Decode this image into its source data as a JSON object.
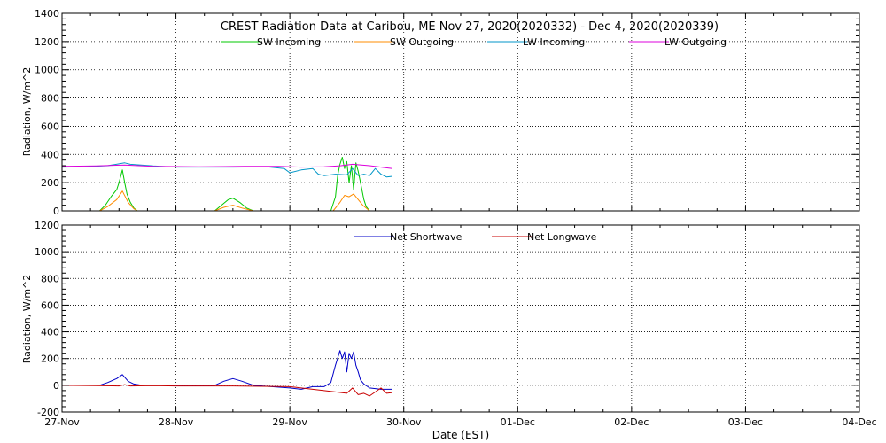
{
  "chart_data": [
    {
      "type": "line",
      "title": "CREST Radiation Data at Caribou, ME   Nov 27, 2020(2020332) - Dec  4, 2020(2020339)",
      "xlabel": "",
      "ylabel": "Radiation, W/m^2",
      "xlim": [
        0,
        7
      ],
      "ylim": [
        0,
        1400
      ],
      "yticks": [
        0,
        200,
        400,
        600,
        800,
        1000,
        1200,
        1400
      ],
      "grid": true,
      "legend_position": "top-center",
      "series": [
        {
          "name": "SW Incoming",
          "color": "#00c800",
          "x": [
            0.33,
            0.38,
            0.43,
            0.48,
            0.5,
            0.53,
            0.55,
            0.57,
            0.6,
            0.63,
            0.66,
            1.34,
            1.4,
            1.46,
            1.5,
            1.56,
            1.62,
            1.68,
            2.36,
            2.4,
            2.42,
            2.44,
            2.46,
            2.48,
            2.5,
            2.52,
            2.54,
            2.56,
            2.58,
            2.6,
            2.62,
            2.65,
            2.67,
            2.7
          ],
          "y": [
            0,
            40,
            100,
            150,
            200,
            290,
            200,
            120,
            60,
            20,
            0,
            0,
            40,
            80,
            90,
            60,
            20,
            0,
            0,
            100,
            250,
            330,
            380,
            300,
            350,
            200,
            320,
            150,
            340,
            280,
            200,
            80,
            30,
            0
          ]
        },
        {
          "name": "SW Outgoing",
          "color": "#ff8c00",
          "x": [
            0.33,
            0.4,
            0.48,
            0.53,
            0.58,
            0.63,
            0.66,
            1.34,
            1.42,
            1.5,
            1.58,
            1.68,
            2.38,
            2.44,
            2.48,
            2.52,
            2.56,
            2.6,
            2.64,
            2.7
          ],
          "y": [
            0,
            30,
            80,
            140,
            60,
            15,
            0,
            0,
            25,
            40,
            20,
            0,
            0,
            60,
            110,
            100,
            120,
            80,
            40,
            0
          ]
        },
        {
          "name": "LW Incoming",
          "color": "#0096c8",
          "x": [
            0,
            0.2,
            0.4,
            0.55,
            0.6,
            0.8,
            1.0,
            1.5,
            1.8,
            1.95,
            2.0,
            2.1,
            2.2,
            2.25,
            2.3,
            2.4,
            2.5,
            2.55,
            2.6,
            2.65,
            2.7,
            2.75,
            2.8,
            2.85,
            2.9
          ],
          "y": [
            310,
            312,
            320,
            340,
            330,
            318,
            310,
            310,
            312,
            300,
            270,
            290,
            300,
            260,
            250,
            260,
            255,
            300,
            250,
            260,
            250,
            300,
            260,
            240,
            245
          ]
        },
        {
          "name": "LW Outgoing",
          "color": "#dc00dc",
          "x": [
            0,
            0.3,
            0.55,
            0.8,
            1.2,
            1.6,
            1.9,
            2.1,
            2.3,
            2.45,
            2.55,
            2.7,
            2.8,
            2.9
          ],
          "y": [
            315,
            318,
            325,
            315,
            312,
            315,
            315,
            310,
            312,
            320,
            330,
            320,
            310,
            300
          ]
        }
      ]
    },
    {
      "type": "line",
      "title": "",
      "xlabel": "Date (EST)",
      "ylabel": "Radiation, W/m^2",
      "xlim": [
        0,
        7
      ],
      "ylim": [
        -200,
        1200
      ],
      "yticks": [
        -200,
        0,
        200,
        400,
        600,
        800,
        1000,
        1200
      ],
      "categories": [
        "27-Nov",
        "28-Nov",
        "29-Nov",
        "30-Nov",
        "01-Dec",
        "02-Dec",
        "03-Dec",
        "04-Dec"
      ],
      "grid": true,
      "legend_position": "top-center",
      "series": [
        {
          "name": "Net Shortwave",
          "color": "#0000c8",
          "x": [
            0,
            0.33,
            0.4,
            0.48,
            0.53,
            0.58,
            0.63,
            0.7,
            1.0,
            1.34,
            1.42,
            1.5,
            1.58,
            1.68,
            2.0,
            2.1,
            2.2,
            2.3,
            2.36,
            2.4,
            2.44,
            2.46,
            2.48,
            2.5,
            2.52,
            2.54,
            2.56,
            2.58,
            2.6,
            2.62,
            2.65,
            2.7,
            2.8,
            2.9
          ],
          "y": [
            0,
            0,
            20,
            50,
            80,
            30,
            10,
            0,
            0,
            0,
            30,
            50,
            30,
            0,
            -20,
            -30,
            -10,
            -10,
            20,
            150,
            260,
            200,
            250,
            100,
            240,
            200,
            250,
            150,
            100,
            40,
            10,
            -20,
            -30,
            -30
          ]
        },
        {
          "name": "Net Longwave",
          "color": "#c80000",
          "x": [
            0,
            0.3,
            0.5,
            0.55,
            0.6,
            0.8,
            1.0,
            1.5,
            2.0,
            2.1,
            2.3,
            2.4,
            2.5,
            2.55,
            2.6,
            2.65,
            2.7,
            2.75,
            2.8,
            2.85,
            2.9
          ],
          "y": [
            0,
            -2,
            -5,
            5,
            -5,
            -3,
            -5,
            -5,
            -10,
            -20,
            -40,
            -50,
            -60,
            -20,
            -70,
            -60,
            -80,
            -50,
            -20,
            -60,
            -55
          ]
        }
      ]
    }
  ]
}
